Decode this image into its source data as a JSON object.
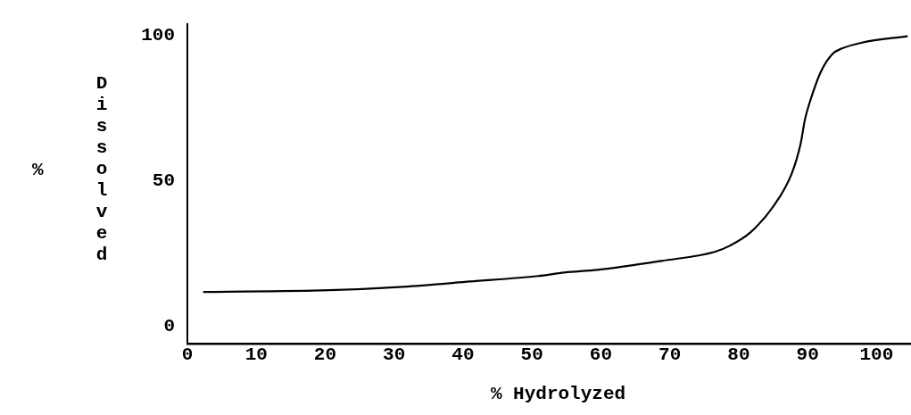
{
  "chart_data": {
    "type": "line",
    "xlabel": "% Hydrolyzed",
    "ylabel": "% Dissolved",
    "x": [
      2.4,
      20.5,
      31.3,
      41,
      50.9,
      54.7,
      59.5,
      68.8,
      76.5,
      78.7,
      81.7,
      85.1,
      87.7,
      89,
      89.6,
      90.6,
      91.9,
      93.6,
      94.9,
      97.9,
      104.4
    ],
    "series": [
      {
        "color": "#000000",
        "values": [
          11.7,
          12.3,
          13.5,
          15.3,
          17.2,
          18.4,
          19.3,
          22.4,
          25.5,
          27.6,
          32.2,
          41.4,
          52.5,
          62.9,
          70.9,
          79.1,
          87.4,
          93.6,
          95.4,
          97.5,
          99.7
        ]
      }
    ],
    "xlim": [
      0,
      105
    ],
    "xticks": [
      0,
      10,
      20,
      30,
      40,
      50,
      60,
      70,
      80,
      90,
      100
    ],
    "ylim": [
      -6,
      104
    ],
    "yticks": [
      0,
      50,
      100
    ],
    "grid": false,
    "legend": false,
    "marker": "none",
    "line_style": "solid"
  }
}
